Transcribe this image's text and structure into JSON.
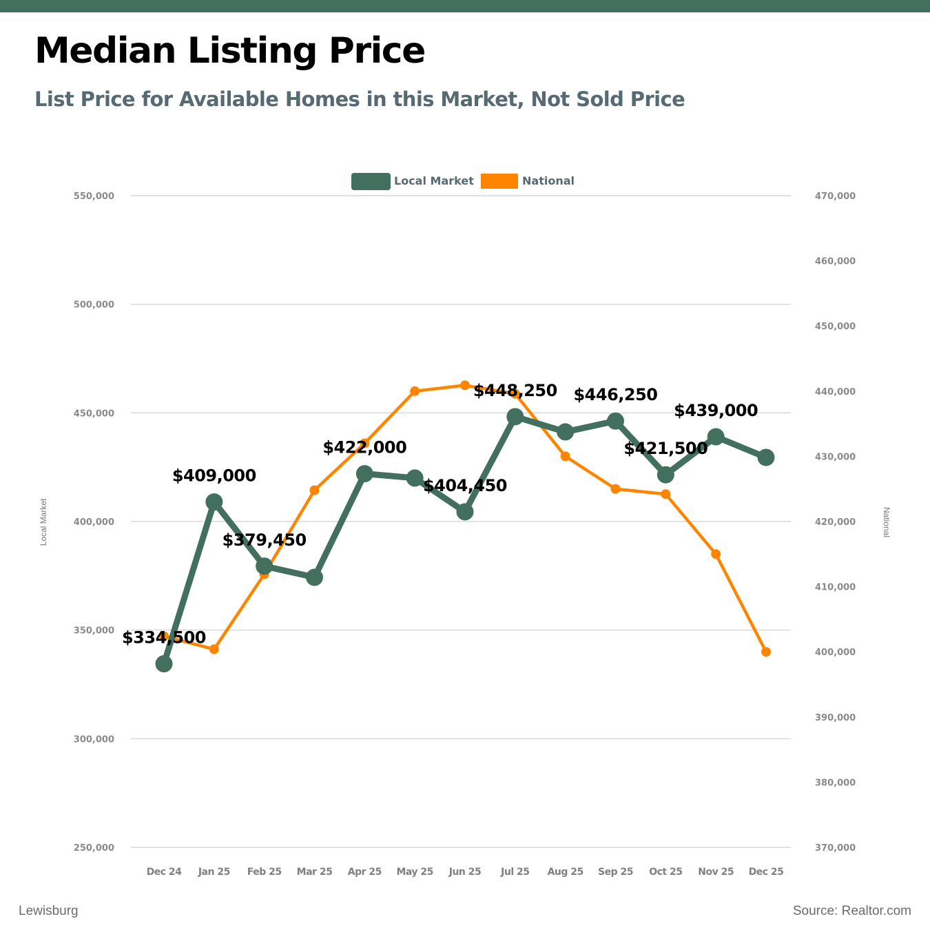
{
  "header": {
    "title": "Median Listing Price",
    "subtitle": "List Price for Available Homes in this Market, Not Sold Price",
    "bar_color": "#426f5e"
  },
  "footer": {
    "location": "Lewisburg",
    "source": "Source: Realtor.com"
  },
  "chart_data": {
    "type": "line",
    "title": "Median Listing Price",
    "subtitle": "List Price for Available Homes in this Market, Not Sold Price",
    "categories": [
      "Dec 24",
      "Jan 25",
      "Feb 25",
      "Mar 25",
      "Apr 25",
      "May 25",
      "Jun 25",
      "Jul 25",
      "Aug 25",
      "Sep 25",
      "Oct 25",
      "Nov 25",
      "Dec 25"
    ],
    "legend_position": "top-center",
    "grid": true,
    "series": [
      {
        "name": "Local Market",
        "axis": "left",
        "color": "#426f5e",
        "values": [
          334500,
          409000,
          379450,
          374300,
          422000,
          420000,
          404450,
          448250,
          441250,
          446250,
          421500,
          439000,
          429500
        ],
        "data_labels": [
          "$334,500",
          "$409,000",
          "$379,450",
          null,
          "$422,000",
          null,
          "$404,450",
          "$448,250",
          null,
          "$446,250",
          "$421,500",
          "$439,000",
          null
        ]
      },
      {
        "name": "National",
        "axis": "right",
        "color": "#ff8500",
        "values": [
          402400,
          400400,
          411900,
          424800,
          432000,
          440000,
          440900,
          439600,
          430000,
          425000,
          424200,
          415000,
          400000
        ],
        "data_labels": []
      }
    ],
    "y_left": {
      "label": "Local Market",
      "ylim": [
        250000,
        550000
      ],
      "ticks": [
        250000,
        300000,
        350000,
        400000,
        450000,
        500000,
        550000
      ],
      "tick_labels": [
        "250,000",
        "300,000",
        "350,000",
        "400,000",
        "450,000",
        "500,000",
        "550,000"
      ]
    },
    "y_right": {
      "label": "National",
      "ylim": [
        370000,
        470000
      ],
      "ticks": [
        370000,
        380000,
        390000,
        400000,
        410000,
        420000,
        430000,
        440000,
        450000,
        460000,
        470000
      ],
      "tick_labels": [
        "370,000",
        "380,000",
        "390,000",
        "400,000",
        "410,000",
        "420,000",
        "430,000",
        "440,000",
        "450,000",
        "460,000",
        "470,000"
      ]
    }
  }
}
